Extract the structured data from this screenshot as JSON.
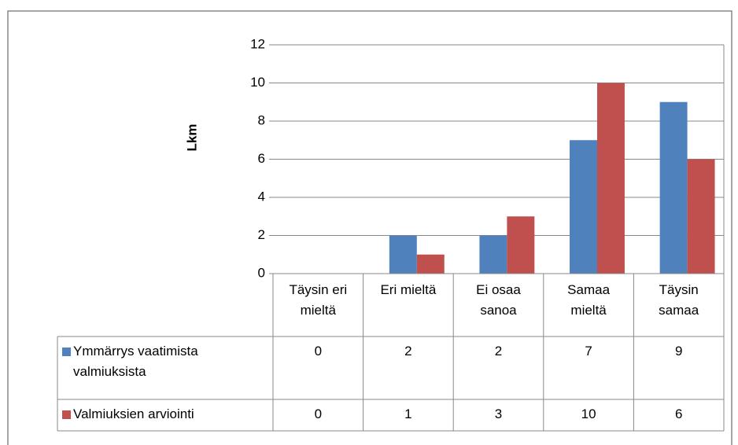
{
  "chart_data": {
    "type": "bar",
    "y_label": "Lkm",
    "categories": [
      "Täysin eri mieltä",
      "Eri mieltä",
      "Ei osaa sanoa",
      "Samaa mieltä",
      "Täysin samaa"
    ],
    "series": [
      {
        "name": "Ymmärrys vaatimista valmiuksista",
        "color": "#4f81bd",
        "values": [
          0,
          2,
          2,
          7,
          9
        ]
      },
      {
        "name": "Valmiuksien arviointi",
        "color": "#c0504d",
        "values": [
          0,
          1,
          3,
          10,
          6
        ]
      }
    ],
    "ylim": [
      0,
      12
    ],
    "yticks": [
      0,
      2,
      4,
      6,
      8,
      10,
      12
    ],
    "grid": true,
    "data_table": true
  }
}
